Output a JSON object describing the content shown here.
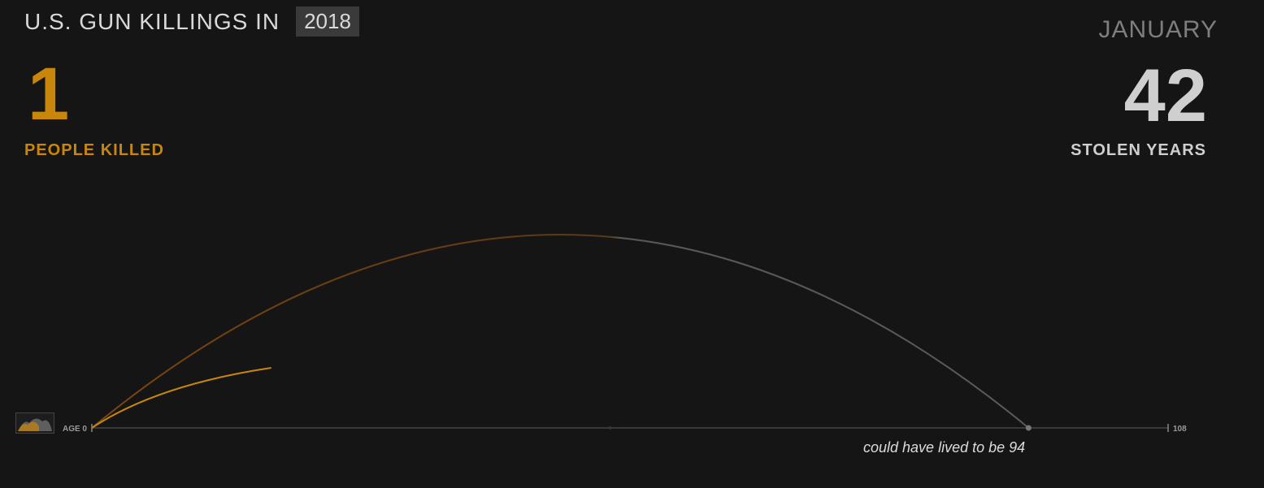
{
  "header": {
    "title": "U.S. GUN KILLINGS IN",
    "year": "2018",
    "month": "JANUARY"
  },
  "stats": {
    "people_killed": "1",
    "people_killed_label": "PEOPLE KILLED",
    "stolen_years": "42",
    "stolen_years_label": "STOLEN YEARS"
  },
  "axis": {
    "start_label": "AGE 0",
    "end_label": "108"
  },
  "caption": "could have lived to be 94",
  "colors": {
    "accent": "#c8860b",
    "arc_dim": "#6a3d0f",
    "arc_gray": "#555555",
    "axis": "#444444",
    "background": "#151515"
  },
  "chart_data": {
    "type": "arc",
    "x_range": [
      0,
      108
    ],
    "xlabel": "AGE",
    "series": [
      {
        "age_at_death": 52,
        "could_have_lived_to": 94,
        "stolen_years": 42
      }
    ],
    "animating_arc": {
      "start_age": 0,
      "current_age": 18
    }
  }
}
